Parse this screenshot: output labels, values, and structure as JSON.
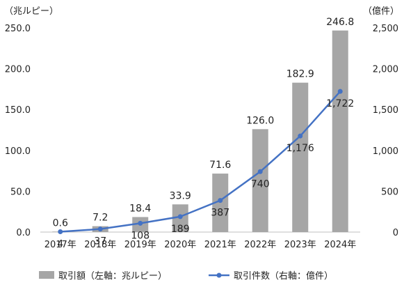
{
  "chart_data": {
    "type": "bar",
    "categories": [
      "2017年",
      "2018年",
      "2019年",
      "2020年",
      "2021年",
      "2022年",
      "2023年",
      "2024年"
    ],
    "series": [
      {
        "name": "取引額（左軸：兆ルピー）",
        "type": "bar",
        "axis": "left",
        "color": "#a6a6a6",
        "values": [
          0.6,
          7.2,
          18.4,
          33.9,
          71.6,
          126.0,
          182.9,
          246.8
        ],
        "labels": [
          "0.6",
          "7.2",
          "18.4",
          "33.9",
          "71.6",
          "126.0",
          "182.9",
          "246.8"
        ]
      },
      {
        "name": "取引件数（右軸：億件）",
        "type": "line",
        "axis": "right",
        "color": "#4472c4",
        "values": [
          4,
          37,
          108,
          189,
          387,
          740,
          1176,
          1722
        ],
        "labels": [
          "4",
          "37",
          "108",
          "189",
          "387",
          "740",
          "1,176",
          "1,722"
        ]
      }
    ],
    "y_left": {
      "unit_label": "（兆ルピー）",
      "ylim": [
        0,
        250
      ],
      "ticks": [
        0,
        50,
        100,
        150,
        200,
        250
      ],
      "tick_labels": [
        "0.0",
        "50.0",
        "100.0",
        "150.0",
        "200.0",
        "250.0"
      ]
    },
    "y_right": {
      "unit_label": "（億件）",
      "ylim": [
        0,
        2500
      ],
      "ticks": [
        0,
        500,
        1000,
        1500,
        2000,
        2500
      ],
      "tick_labels": [
        "0",
        "500",
        "1,000",
        "1,500",
        "2,000",
        "2,500"
      ]
    },
    "grid": false,
    "legend": "bottom"
  }
}
